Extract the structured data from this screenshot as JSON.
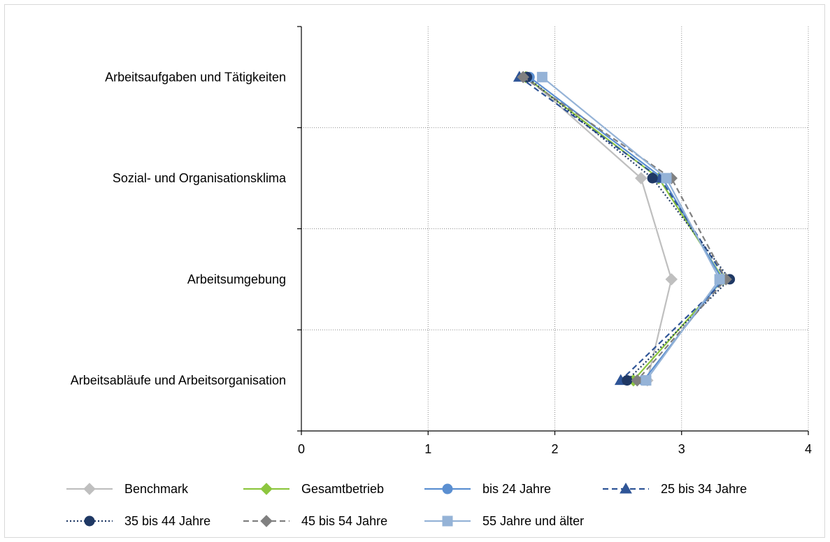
{
  "chart_data": {
    "type": "line",
    "orientation": "horizontal",
    "categories": [
      "Arbeitsaufgaben und Tätigkeiten",
      "Sozial- und Organisationsklima",
      "Arbeitsumgebung",
      "Arbeitsabläufe und Arbeitsorganisation"
    ],
    "xlim": [
      0,
      4
    ],
    "xticks": [
      "0",
      "1",
      "2",
      "3",
      "4"
    ],
    "grid": true,
    "legend_position": "bottom",
    "series": [
      {
        "name": "Benchmark",
        "values": [
          1.78,
          2.68,
          2.92,
          2.73
        ],
        "color": "#bfbfbf",
        "dash": "solid",
        "marker": "diamond"
      },
      {
        "name": "Gesamtbetrieb",
        "values": [
          1.77,
          2.82,
          3.33,
          2.62
        ],
        "color": "#8dc63f",
        "dash": "solid",
        "marker": "diamond"
      },
      {
        "name": "bis 24 Jahre",
        "values": [
          1.8,
          2.85,
          3.32,
          2.7
        ],
        "color": "#5b8fd1",
        "dash": "solid",
        "marker": "circle"
      },
      {
        "name": "25 bis 34 Jahre",
        "values": [
          1.72,
          2.83,
          3.35,
          2.52
        ],
        "color": "#2f5597",
        "dash": "dashed",
        "marker": "triangle"
      },
      {
        "name": "35 bis 44 Jahre",
        "values": [
          1.78,
          2.77,
          3.38,
          2.57
        ],
        "color": "#1f3864",
        "dash": "dotted",
        "marker": "circle"
      },
      {
        "name": "45 bis 54 Jahre",
        "values": [
          1.75,
          2.92,
          3.35,
          2.65
        ],
        "color": "#808080",
        "dash": "dashed",
        "marker": "diamond"
      },
      {
        "name": "55 Jahre und älter",
        "values": [
          1.9,
          2.88,
          3.3,
          2.72
        ],
        "color": "#95b3d7",
        "dash": "solid",
        "marker": "square"
      }
    ]
  }
}
